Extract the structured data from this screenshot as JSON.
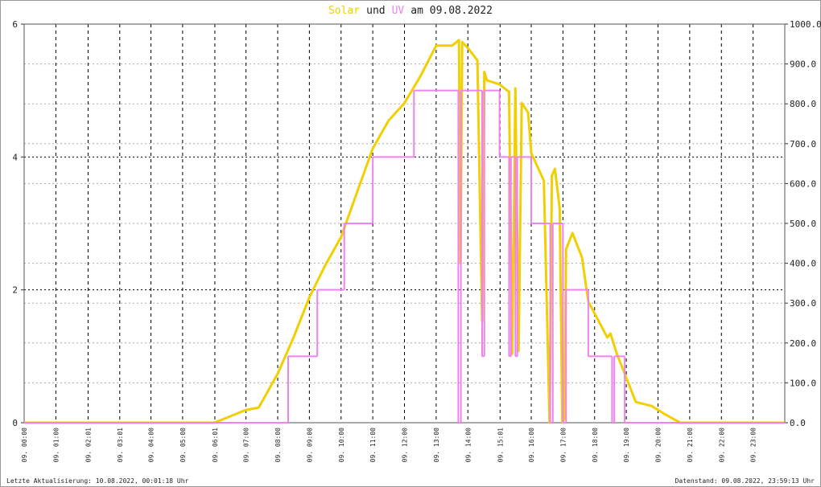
{
  "chart_data": {
    "type": "line",
    "title_joiner": "und",
    "title_suffix": "am 09.08.2022",
    "footer_left": "Letzte Aktualisierung: 10.08.2022, 00:01:18 Uhr",
    "footer_right": "Datenstand: 09.08.2022, 23:59:13 Uhr",
    "xlim": [
      0,
      24
    ],
    "xticks": [
      {
        "value": 0,
        "label": "09. 00:00"
      },
      {
        "value": 1,
        "label": "09. 01:00"
      },
      {
        "value": 2.017,
        "label": "09. 02:01"
      },
      {
        "value": 3.017,
        "label": "09. 03:01"
      },
      {
        "value": 4,
        "label": "09. 04:00"
      },
      {
        "value": 5,
        "label": "09. 05:00"
      },
      {
        "value": 6.017,
        "label": "09. 06:01"
      },
      {
        "value": 7,
        "label": "09. 07:00"
      },
      {
        "value": 8,
        "label": "09. 08:00"
      },
      {
        "value": 9,
        "label": "09. 09:00"
      },
      {
        "value": 10,
        "label": "09. 10:00"
      },
      {
        "value": 11,
        "label": "09. 11:00"
      },
      {
        "value": 12,
        "label": "09. 12:00"
      },
      {
        "value": 13,
        "label": "09. 13:00"
      },
      {
        "value": 14,
        "label": "09. 14:00"
      },
      {
        "value": 15.017,
        "label": "09. 15:01"
      },
      {
        "value": 16,
        "label": "09. 16:00"
      },
      {
        "value": 17,
        "label": "09. 17:00"
      },
      {
        "value": 18,
        "label": "09. 18:00"
      },
      {
        "value": 19,
        "label": "09. 19:00"
      },
      {
        "value": 20,
        "label": "09. 20:00"
      },
      {
        "value": 21,
        "label": "09. 21:00"
      },
      {
        "value": 22,
        "label": "09. 22:00"
      },
      {
        "value": 23,
        "label": "09. 23:00"
      }
    ],
    "ylim": [
      0,
      6
    ],
    "yticks": [
      0,
      2,
      4,
      6
    ],
    "y2lim": [
      0,
      1000
    ],
    "y2ticks": [
      {
        "value": 0,
        "label": "0.0"
      },
      {
        "value": 100,
        "label": "100.0"
      },
      {
        "value": 200,
        "label": "200.0"
      },
      {
        "value": 300,
        "label": "300.0"
      },
      {
        "value": 400,
        "label": "400.0"
      },
      {
        "value": 500,
        "label": "500.0"
      },
      {
        "value": 600,
        "label": "600.0"
      },
      {
        "value": 700,
        "label": "700.0"
      },
      {
        "value": 800,
        "label": "800.0"
      },
      {
        "value": 900,
        "label": "900.0"
      },
      {
        "value": 1000,
        "label": "1000.0"
      }
    ],
    "grid": true,
    "series": [
      {
        "name": "Solar",
        "color": "#f2cf00",
        "axis": "y2",
        "step": false,
        "x": [
          0,
          6.0,
          7.0,
          7.4,
          8.0,
          8.5,
          9.0,
          9.5,
          10.0,
          10.5,
          11.0,
          11.5,
          12.0,
          12.5,
          13.0,
          13.5,
          13.72,
          13.77,
          13.82,
          14.0,
          14.3,
          14.45,
          14.52,
          14.6,
          15.0,
          15.3,
          15.4,
          15.5,
          15.6,
          15.7,
          15.9,
          16.0,
          16.4,
          16.58,
          16.65,
          16.75,
          16.9,
          16.98,
          17.05,
          17.1,
          17.3,
          17.6,
          17.8,
          18.0,
          18.4,
          18.5,
          18.7,
          19.0,
          19.3,
          19.8,
          20.2,
          20.7,
          24
        ],
        "values": [
          0,
          0,
          32,
          38,
          123,
          214,
          315,
          395,
          466,
          577,
          688,
          758,
          802,
          869,
          946,
          946,
          960,
          400,
          955,
          940,
          909,
          254,
          880,
          859,
          849,
          830,
          173,
          839,
          180,
          802,
          778,
          677,
          607,
          0,
          620,
          637,
          536,
          0,
          10,
          435,
          476,
          415,
          304,
          274,
          214,
          224,
          173,
          113,
          52,
          42,
          22,
          0,
          0
        ]
      },
      {
        "name": "UV",
        "color": "#ee82ee",
        "axis": "y",
        "step": true,
        "x": [
          0,
          8.33,
          9.25,
          10.1,
          11.0,
          12.3,
          13.7,
          13.78,
          14.45,
          14.52,
          15.0,
          15.3,
          15.36,
          15.5,
          15.56,
          16.0,
          16.6,
          16.68,
          17.0,
          17.1,
          17.8,
          18.55,
          18.62,
          18.95,
          24
        ],
        "values": [
          0,
          1,
          2,
          3,
          4,
          5,
          0,
          5,
          1,
          5,
          4,
          1,
          4,
          1,
          4,
          3,
          0,
          3,
          0,
          2,
          1,
          0,
          1,
          0,
          0
        ]
      }
    ]
  }
}
